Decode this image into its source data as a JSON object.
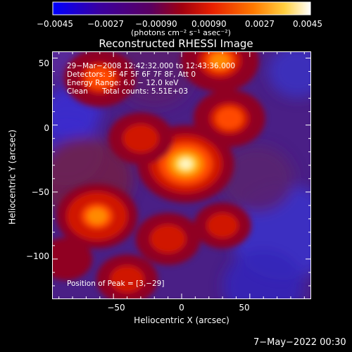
{
  "chart_data": {
    "type": "heatmap",
    "title": "Reconstructed RHESSI Image",
    "xlabel": "Heliocentric X (arcsec)",
    "ylabel": "Heliocentric Y (arcsec)",
    "xlim": [
      -95,
      95
    ],
    "ylim": [
      -130,
      55
    ],
    "xticks": [
      -50,
      0,
      50
    ],
    "yticks": [
      50,
      0,
      -50,
      -100
    ],
    "xtick_labels": [
      "−50",
      "0",
      "50"
    ],
    "ytick_labels": [
      "50",
      "0",
      "−50",
      "−100"
    ],
    "colorbar": {
      "range": [
        -0.0045,
        0.0045
      ],
      "ticks": [
        "−0.0045",
        "−0.0027",
        "−0.00090",
        "0.00090",
        "0.0027",
        "0.0045"
      ],
      "unit_label": "(photons cm⁻² s⁻¹ asec⁻²)",
      "colors": [
        "#0000ff",
        "#3a0090",
        "#600040",
        "#c00000",
        "#ff5000",
        "#ffb000",
        "#ffffe0"
      ]
    },
    "annotations": {
      "time": "29−Mar−2008 12:42:32.000 to 12:43:36.000",
      "detectors": "Detectors: 3F 4F 5F 6F 7F 8F, Att 0",
      "energy": "Energy Range: 6.0 − 12.0 keV",
      "method": "Clean",
      "counts": "Total counts: 5.51E+03",
      "peak": "Position of Peak = [3,−29]"
    },
    "peak_position": [
      3,
      -29
    ],
    "sources": [
      {
        "x": 3,
        "y": -29,
        "intensity": 1.0
      },
      {
        "x": -62,
        "y": -68,
        "intensity": 0.7
      },
      {
        "x": 28,
        "y": 48,
        "intensity": 0.65
      },
      {
        "x": -60,
        "y": 35,
        "intensity": 0.55
      },
      {
        "x": 35,
        "y": 5,
        "intensity": 0.55
      },
      {
        "x": -30,
        "y": -10,
        "intensity": 0.45
      },
      {
        "x": -10,
        "y": -85,
        "intensity": 0.45
      },
      {
        "x": 30,
        "y": -75,
        "intensity": 0.35
      },
      {
        "x": -85,
        "y": -100,
        "intensity": 0.3
      },
      {
        "x": -40,
        "y": -115,
        "intensity": 0.4
      }
    ]
  },
  "footer": {
    "date": "7−May−2022 00:30"
  }
}
